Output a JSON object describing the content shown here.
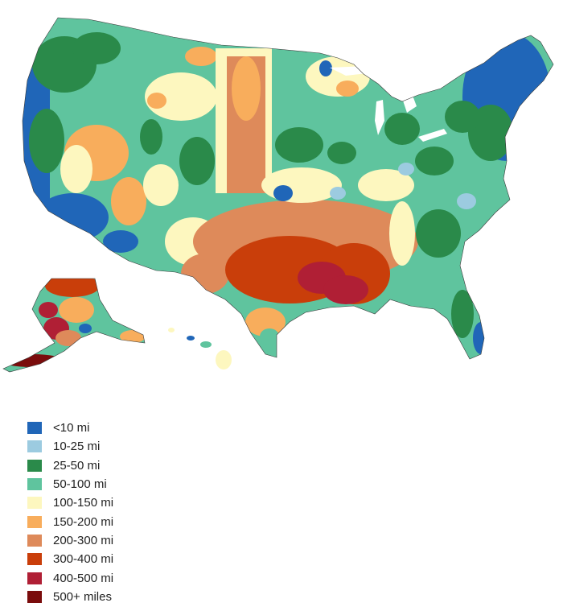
{
  "colors": {
    "c10": "#2066b8",
    "c25": "#9ccbe0",
    "c50": "#2a8a4a",
    "c100": "#5fc49e",
    "c150": "#fdf7bf",
    "c200": "#f8ad5c",
    "c300": "#de8a5a",
    "c400": "#c93e0a",
    "c500": "#b01f35",
    "c500p": "#7a0c0c",
    "border": "#3a3a3a",
    "background": "#ffffff"
  },
  "legend": [
    {
      "label": "<10 mi",
      "color": "#2066b8"
    },
    {
      "label": "10-25 mi",
      "color": "#9ccbe0"
    },
    {
      "label": "25-50 mi",
      "color": "#2a8a4a"
    },
    {
      "label": "50-100 mi",
      "color": "#5fc49e"
    },
    {
      "label": "100-150 mi",
      "color": "#fdf7bf"
    },
    {
      "label": "150-200 mi",
      "color": "#f8ad5c"
    },
    {
      "label": "200-300 mi",
      "color": "#de8a5a"
    },
    {
      "label": "300-400 mi",
      "color": "#c93e0a"
    },
    {
      "label": "400-500 mi",
      "color": "#b01f35"
    },
    {
      "label": "500+ miles",
      "color": "#7a0c0c"
    }
  ]
}
